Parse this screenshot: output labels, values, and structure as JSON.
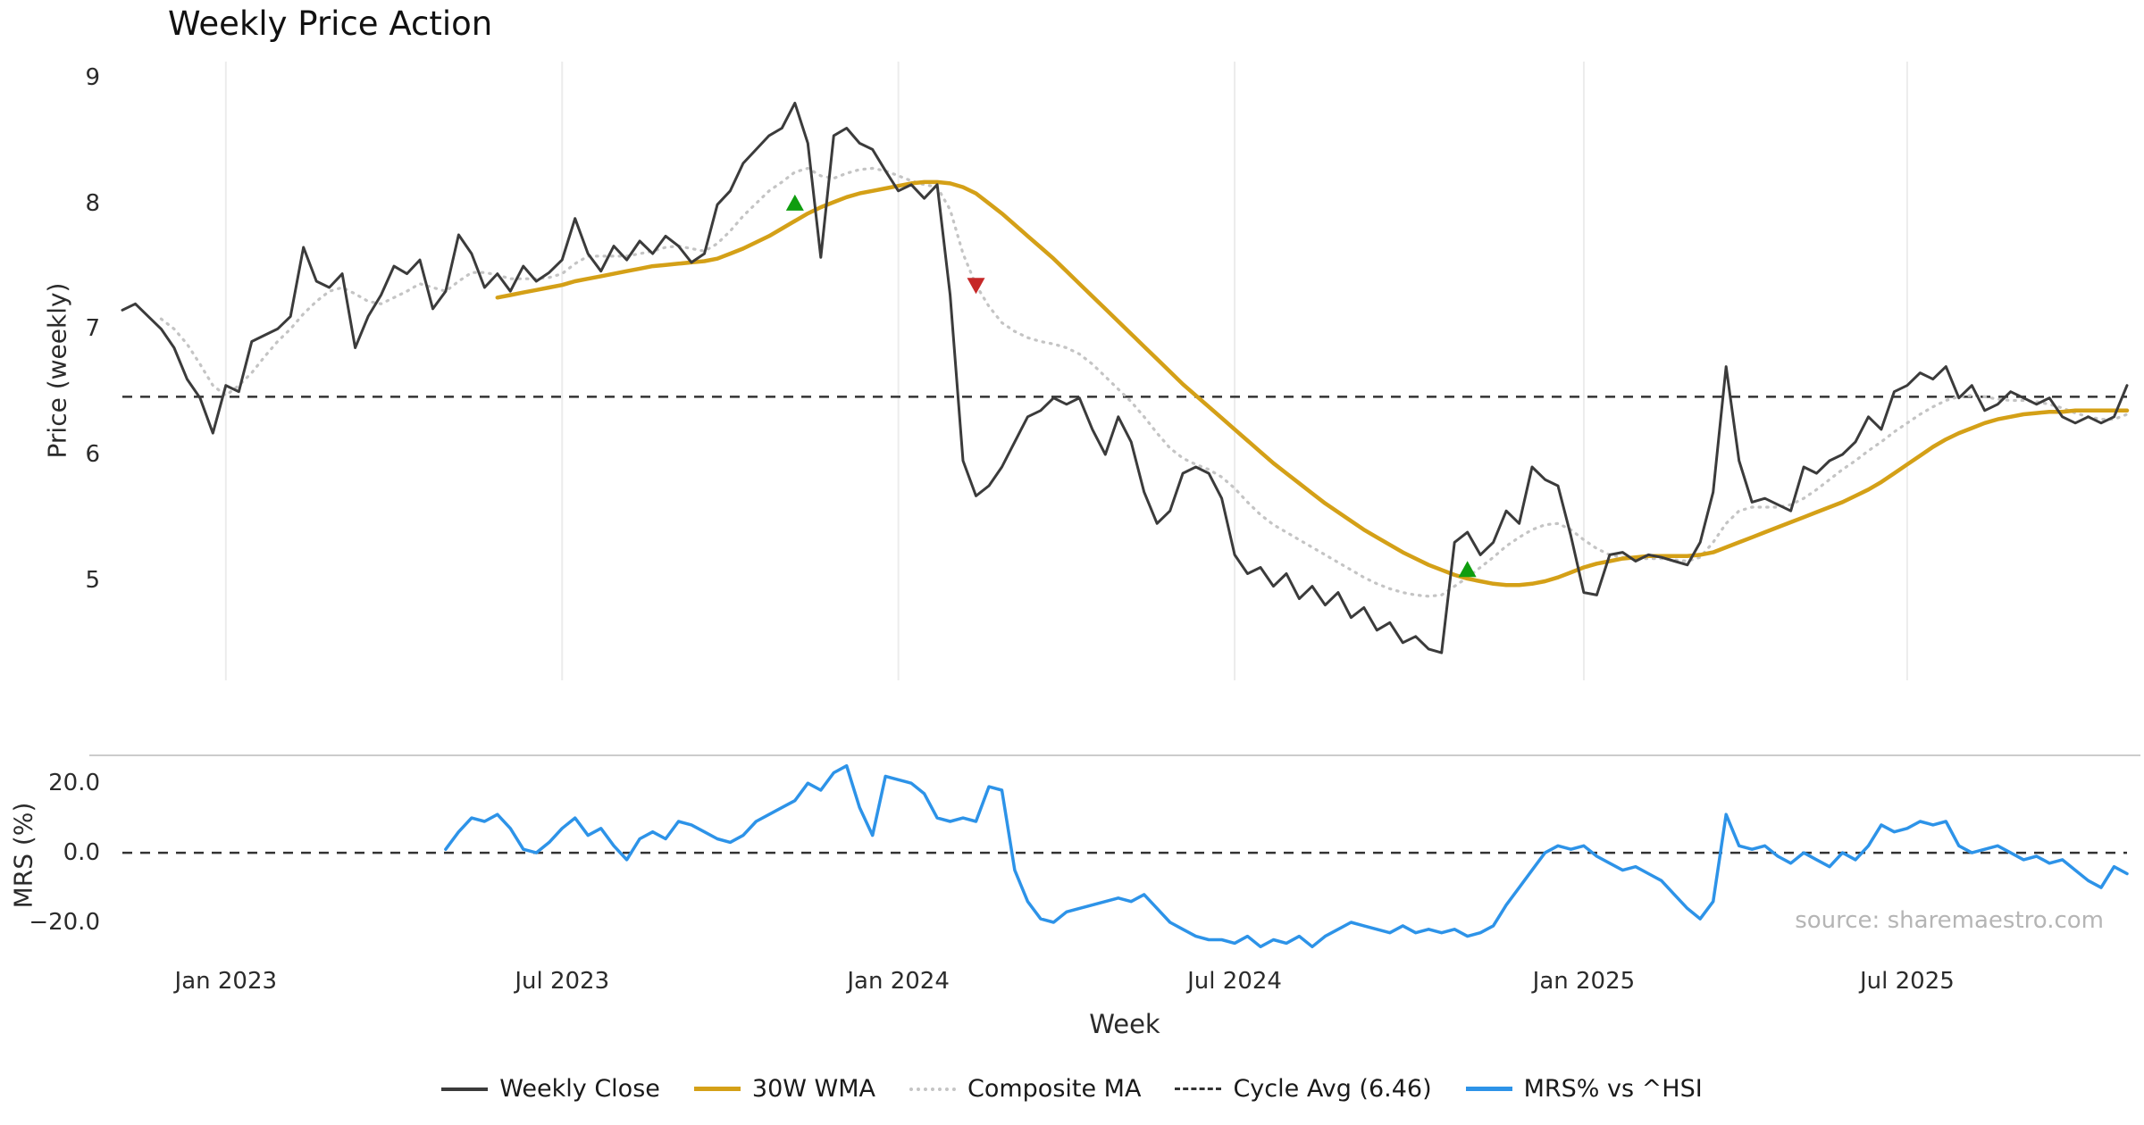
{
  "page": {
    "title": "Weekly Price Action",
    "source_note": "source: sharemaestro.com"
  },
  "axes": {
    "price_label": "Price (weekly)",
    "mrs_label": "MRS (%)",
    "x_label": "Week"
  },
  "legend": {
    "items": [
      {
        "label": "Weekly Close",
        "series": "weekly_close"
      },
      {
        "label": "30W WMA",
        "series": "wma_30w"
      },
      {
        "label": "Composite MA",
        "series": "composite_ma"
      },
      {
        "label": "Cycle Avg (6.46)",
        "series": "cycle_avg"
      },
      {
        "label": "MRS% vs ^HSI",
        "series": "mrs"
      }
    ]
  },
  "chart_data": [
    {
      "type": "line",
      "panel": "price",
      "title": "Weekly Price Action",
      "xlabel": "Week",
      "ylabel": "Price (weekly)",
      "x_unit": "week_index",
      "x_tick_labels": [
        "Jan 2023",
        "Jul 2023",
        "Jan 2024",
        "Jul 2024",
        "Jan 2025",
        "Jul 2025"
      ],
      "x_tick_indices": [
        8,
        34,
        60,
        86,
        113,
        138
      ],
      "yticks": [
        9,
        8,
        7,
        6,
        5
      ],
      "ylim": [
        4.2,
        9.13
      ],
      "grid": "vertical-light",
      "cycle_avg": 6.46,
      "signal_colors": {
        "buy": "#0f9d0f",
        "sell": "#c62828"
      },
      "signals": [
        {
          "type": "buy",
          "index": 52,
          "price": 8.0
        },
        {
          "type": "sell",
          "index": 66,
          "price": 7.35
        },
        {
          "type": "buy",
          "index": 104,
          "price": 5.08
        }
      ],
      "series": [
        {
          "name": "Weekly Close",
          "color": "#3b3b3b",
          "style": "solid",
          "start_index": 0,
          "values": [
            7.15,
            7.2,
            7.1,
            7.0,
            6.85,
            6.6,
            6.45,
            6.17,
            6.55,
            6.5,
            6.9,
            6.95,
            7.0,
            7.1,
            7.65,
            7.38,
            7.33,
            7.44,
            6.85,
            7.1,
            7.27,
            7.5,
            7.44,
            7.55,
            7.16,
            7.3,
            7.75,
            7.6,
            7.33,
            7.44,
            7.3,
            7.5,
            7.38,
            7.45,
            7.55,
            7.88,
            7.6,
            7.46,
            7.66,
            7.55,
            7.7,
            7.6,
            7.74,
            7.66,
            7.53,
            7.6,
            7.99,
            8.1,
            8.32,
            8.43,
            8.54,
            8.6,
            8.8,
            8.48,
            7.57,
            8.54,
            8.6,
            8.48,
            8.43,
            8.26,
            8.1,
            8.15,
            8.04,
            8.15,
            7.27,
            5.95,
            5.67,
            5.75,
            5.9,
            6.1,
            6.3,
            6.35,
            6.45,
            6.4,
            6.45,
            6.2,
            6.0,
            6.3,
            6.1,
            5.7,
            5.45,
            5.55,
            5.85,
            5.9,
            5.85,
            5.65,
            5.2,
            5.05,
            5.1,
            4.95,
            5.05,
            4.85,
            4.95,
            4.8,
            4.9,
            4.7,
            4.78,
            4.6,
            4.66,
            4.5,
            4.55,
            4.45,
            4.42,
            5.3,
            5.38,
            5.2,
            5.3,
            5.55,
            5.45,
            5.9,
            5.8,
            5.75,
            5.35,
            4.9,
            4.88,
            5.2,
            5.22,
            5.15,
            5.2,
            5.18,
            5.15,
            5.12,
            5.3,
            5.7,
            6.7,
            5.95,
            5.62,
            5.65,
            5.6,
            5.55,
            5.9,
            5.85,
            5.95,
            6.0,
            6.1,
            6.3,
            6.2,
            6.5,
            6.55,
            6.65,
            6.6,
            6.7,
            6.45,
            6.55,
            6.35,
            6.4,
            6.5,
            6.45,
            6.4,
            6.45,
            6.3,
            6.25,
            6.3,
            6.25,
            6.3,
            6.55
          ]
        },
        {
          "name": "30W WMA",
          "color": "#d4a017",
          "style": "solid",
          "start_index": 29,
          "values": [
            7.25,
            7.27,
            7.29,
            7.31,
            7.33,
            7.35,
            7.38,
            7.4,
            7.42,
            7.44,
            7.46,
            7.48,
            7.5,
            7.51,
            7.52,
            7.53,
            7.54,
            7.56,
            7.6,
            7.64,
            7.69,
            7.74,
            7.8,
            7.86,
            7.92,
            7.97,
            8.01,
            8.05,
            8.08,
            8.1,
            8.12,
            8.14,
            8.16,
            8.17,
            8.17,
            8.16,
            8.13,
            8.08,
            8.0,
            7.92,
            7.83,
            7.74,
            7.65,
            7.56,
            7.46,
            7.36,
            7.26,
            7.16,
            7.06,
            6.96,
            6.86,
            6.76,
            6.66,
            6.56,
            6.47,
            6.38,
            6.29,
            6.2,
            6.11,
            6.02,
            5.93,
            5.85,
            5.77,
            5.69,
            5.61,
            5.54,
            5.47,
            5.4,
            5.34,
            5.28,
            5.22,
            5.17,
            5.12,
            5.08,
            5.04,
            5.01,
            4.99,
            4.97,
            4.96,
            4.96,
            4.97,
            4.99,
            5.02,
            5.06,
            5.1,
            5.13,
            5.15,
            5.17,
            5.18,
            5.19,
            5.19,
            5.19,
            5.19,
            5.2,
            5.22,
            5.26,
            5.3,
            5.34,
            5.38,
            5.42,
            5.46,
            5.5,
            5.54,
            5.58,
            5.62,
            5.67,
            5.72,
            5.78,
            5.85,
            5.92,
            5.99,
            6.06,
            6.12,
            6.17,
            6.21,
            6.25,
            6.28,
            6.3,
            6.32,
            6.33,
            6.34,
            6.34,
            6.35,
            6.35,
            6.35,
            6.35,
            6.35
          ]
        },
        {
          "name": "Composite MA",
          "color": "#c4c4c4",
          "style": "dotted",
          "start_index": 3,
          "values": [
            7.08,
            7.0,
            6.88,
            6.72,
            6.55,
            6.47,
            6.55,
            6.65,
            6.78,
            6.9,
            7.0,
            7.12,
            7.22,
            7.3,
            7.33,
            7.28,
            7.22,
            7.2,
            7.25,
            7.3,
            7.36,
            7.33,
            7.3,
            7.38,
            7.45,
            7.45,
            7.43,
            7.4,
            7.4,
            7.4,
            7.41,
            7.44,
            7.52,
            7.58,
            7.58,
            7.58,
            7.58,
            7.6,
            7.62,
            7.65,
            7.66,
            7.64,
            7.62,
            7.68,
            7.78,
            7.9,
            8.0,
            8.1,
            8.17,
            8.25,
            8.28,
            8.22,
            8.2,
            8.24,
            8.27,
            8.28,
            8.26,
            8.22,
            8.18,
            8.15,
            8.13,
            7.95,
            7.6,
            7.35,
            7.18,
            7.05,
            6.98,
            6.93,
            6.9,
            6.88,
            6.85,
            6.8,
            6.72,
            6.62,
            6.52,
            6.42,
            6.3,
            6.17,
            6.05,
            5.97,
            5.92,
            5.88,
            5.82,
            5.73,
            5.62,
            5.52,
            5.44,
            5.38,
            5.32,
            5.26,
            5.2,
            5.14,
            5.08,
            5.02,
            4.97,
            4.93,
            4.9,
            4.88,
            4.87,
            4.88,
            4.95,
            5.02,
            5.1,
            5.18,
            5.27,
            5.34,
            5.4,
            5.44,
            5.45,
            5.4,
            5.32,
            5.25,
            5.2,
            5.18,
            5.17,
            5.17,
            5.17,
            5.16,
            5.15,
            5.18,
            5.3,
            5.45,
            5.55,
            5.58,
            5.58,
            5.58,
            5.6,
            5.65,
            5.72,
            5.8,
            5.88,
            5.95,
            6.03,
            6.1,
            6.18,
            6.25,
            6.32,
            6.38,
            6.43,
            6.46,
            6.47,
            6.46,
            6.44,
            6.43,
            6.43,
            6.42,
            6.4,
            6.37,
            6.33,
            6.3,
            6.28,
            6.28,
            6.32
          ]
        },
        {
          "name": "Cycle Avg (6.46)",
          "color": "#333333",
          "style": "dashed",
          "constant": 6.46
        }
      ]
    },
    {
      "type": "line",
      "panel": "mrs",
      "ylabel": "MRS (%)",
      "yticks": [
        20,
        0,
        -20
      ],
      "ytick_labels": [
        "20.0",
        "0.0",
        "−20.0"
      ],
      "ylim": [
        -30,
        28
      ],
      "zero_line": 0,
      "series": [
        {
          "name": "MRS% vs ^HSI",
          "color": "#2d93e8",
          "style": "solid",
          "start_index": 25,
          "values": [
            1,
            6,
            10,
            9,
            11,
            7,
            1,
            0,
            3,
            7,
            10,
            5,
            7,
            2,
            -2,
            4,
            6,
            4,
            9,
            8,
            6,
            4,
            3,
            5,
            9,
            11,
            13,
            15,
            20,
            18,
            23,
            25,
            13,
            5,
            22,
            21,
            20,
            17,
            10,
            9,
            10,
            9,
            19,
            18,
            -5,
            -14,
            -19,
            -20,
            -17,
            -16,
            -15,
            -14,
            -13,
            -14,
            -12,
            -16,
            -20,
            -22,
            -24,
            -25,
            -25,
            -26,
            -24,
            -27,
            -25,
            -26,
            -24,
            -27,
            -24,
            -22,
            -20,
            -21,
            -22,
            -23,
            -21,
            -23,
            -22,
            -23,
            -22,
            -24,
            -23,
            -21,
            -15,
            -10,
            -5,
            0,
            2,
            1,
            2,
            -1,
            -3,
            -5,
            -4,
            -6,
            -8,
            -12,
            -16,
            -19,
            -14,
            11,
            2,
            1,
            2,
            -1,
            -3,
            0,
            -2,
            -4,
            0,
            -2,
            2,
            8,
            6,
            7,
            9,
            8,
            9,
            2,
            0,
            1,
            2,
            0,
            -2,
            -1,
            -3,
            -2,
            -5,
            -8,
            -10,
            -4,
            -6
          ]
        }
      ]
    }
  ]
}
